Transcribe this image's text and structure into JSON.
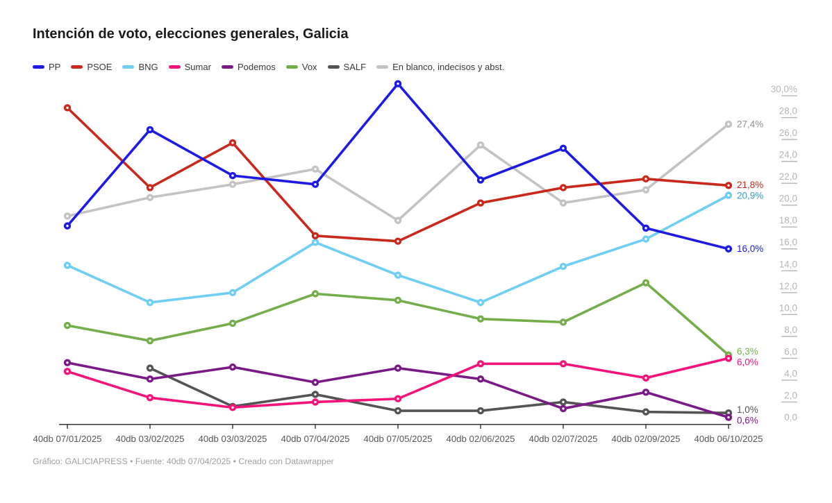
{
  "title": "Intención de voto, elecciones generales, Galicia",
  "footer": "Gráfico: GALICIAPRESS • Fuente: 40db 07/04/2025 • Creado con Datawrapper",
  "chart_data": {
    "type": "line",
    "x": [
      "40db 07/01/2025",
      "40db 03/02/2025",
      "40db 03/03/2025",
      "40db 07/04/2025",
      "40db 07/05/2025",
      "40db 02/06/2025",
      "40db 02/07/2025",
      "40db 02/09/2025",
      "40db 06/10/2025"
    ],
    "series": [
      {
        "name": "PP",
        "color": "#1c1ae3",
        "values": [
          18.1,
          26.9,
          22.7,
          21.9,
          31.1,
          22.3,
          25.2,
          17.9,
          16.0
        ],
        "end_label": "16,0%"
      },
      {
        "name": "PSOE",
        "color": "#c9281c",
        "values": [
          28.9,
          21.6,
          25.7,
          17.2,
          16.7,
          20.2,
          21.6,
          22.4,
          21.8
        ],
        "end_label": "21,8%"
      },
      {
        "name": "BNG",
        "color": "#6ecef3",
        "values": [
          14.5,
          11.1,
          12.0,
          16.6,
          13.6,
          11.1,
          14.4,
          16.9,
          20.9
        ],
        "end_label": "20,9%",
        "label_color": "#2e9fc9"
      },
      {
        "name": "Sumar",
        "color": "#f4127b",
        "values": [
          4.8,
          2.4,
          1.5,
          2.0,
          2.3,
          5.5,
          5.5,
          4.2,
          6.0
        ],
        "end_label": "6,0%"
      },
      {
        "name": "Podemos",
        "color": "#7a1a86",
        "values": [
          5.6,
          4.1,
          5.2,
          3.8,
          5.1,
          4.1,
          1.4,
          2.9,
          0.6
        ],
        "end_label": "0,6%"
      },
      {
        "name": "Vox",
        "color": "#73ae4b",
        "values": [
          9.0,
          7.6,
          9.2,
          11.9,
          11.3,
          9.6,
          9.3,
          12.9,
          6.3
        ],
        "end_label": "6,3%"
      },
      {
        "name": "SALF",
        "color": "#545454",
        "values": [
          null,
          5.1,
          1.6,
          2.7,
          1.2,
          1.2,
          2.0,
          1.1,
          1.0
        ],
        "end_label": "1,0%"
      },
      {
        "name": "En blanco, indecisos y abst.",
        "color": "#c3c3c3",
        "values": [
          19.0,
          20.7,
          21.9,
          23.3,
          18.6,
          25.5,
          20.2,
          21.4,
          27.4
        ],
        "end_label": "27,4%",
        "label_color": "#8f8f8f"
      }
    ],
    "ylim": [
      0,
      30
    ],
    "y_tick_step": 2,
    "y_tick_labels_top_down": [
      "30,0%",
      "28,0",
      "26,0",
      "24,0",
      "22,0",
      "20,0",
      "18,0",
      "16,0",
      "14,0",
      "12,0",
      "10,0",
      "8,0",
      "6,0",
      "4,0",
      "2,0",
      "0,0"
    ],
    "grid": false,
    "legend_position": "top"
  }
}
